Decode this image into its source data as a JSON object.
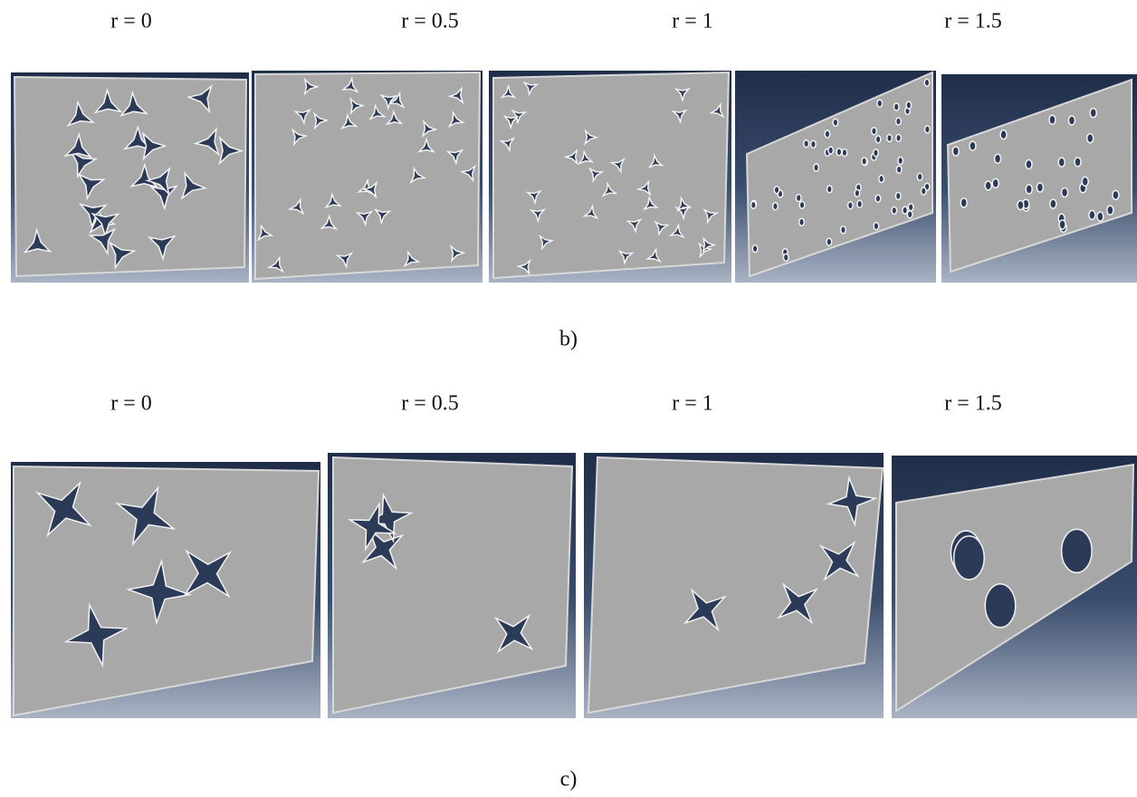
{
  "figures": [
    {
      "labels": [
        "r = 0",
        "r = 0.5",
        "r = 1",
        "r = 1.5"
      ],
      "caption": "b)"
    },
    {
      "labels": [
        "r = 0",
        "r = 0.5",
        "r = 1",
        "r = 1.5"
      ],
      "caption": "c)"
    }
  ]
}
